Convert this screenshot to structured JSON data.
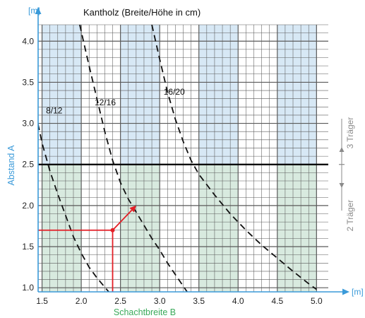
{
  "colors": {
    "axis": "#3a9ad9",
    "grid": "#5a5a5a",
    "band_top": "#d7e8f5",
    "band_bottom": "#d8eadf",
    "example": "#e31f26",
    "curve": "#111111",
    "side_label": "#8a8a8a"
  },
  "chart_data": {
    "type": "line",
    "title": "Kantholz (Breite/Höhe in cm)",
    "xlabel": "Schachtbreite B",
    "ylabel": "Abstand A",
    "x_unit": "[m]",
    "y_unit": "[m]",
    "xlim": [
      1.45,
      5.15
    ],
    "ylim": [
      0.95,
      4.2
    ],
    "x_ticks": [
      "1.5",
      "2.0",
      "2.5",
      "3.0",
      "3.5",
      "4.0",
      "4.5",
      "5.0"
    ],
    "y_ticks": [
      "1.0",
      "1.5",
      "2.0",
      "2.5",
      "3.0",
      "3.5",
      "4.0"
    ],
    "grid": true,
    "shaded_bands_x": [
      [
        1.5,
        2.0
      ],
      [
        2.5,
        3.0
      ],
      [
        3.5,
        4.0
      ],
      [
        4.5,
        5.0
      ]
    ],
    "threshold": {
      "y": 2.5,
      "label_above": "3 Träger",
      "label_below": "2 Träger"
    },
    "series": [
      {
        "name": "8/12",
        "x": [
          1.42,
          1.5,
          1.6,
          1.7,
          1.8,
          1.9,
          2.0,
          2.1,
          2.2,
          2.35
        ],
        "y": [
          3.12,
          2.76,
          2.42,
          2.14,
          1.88,
          1.62,
          1.42,
          1.25,
          1.12,
          0.95
        ]
      },
      {
        "name": "12/16",
        "x": [
          1.98,
          2.1,
          2.2,
          2.3,
          2.4,
          2.5,
          2.6,
          2.7,
          2.8,
          2.9,
          3.0,
          3.1,
          3.2,
          3.3,
          3.35
        ],
        "y": [
          4.2,
          3.7,
          3.3,
          2.9,
          2.55,
          2.28,
          2.08,
          1.92,
          1.76,
          1.6,
          1.46,
          1.3,
          1.16,
          1.02,
          0.95
        ]
      },
      {
        "name": "16/20",
        "x": [
          2.9,
          3.0,
          3.1,
          3.2,
          3.3,
          3.4,
          3.5,
          3.7,
          3.9,
          4.1,
          4.3,
          4.5,
          4.7,
          4.9,
          5.0
        ],
        "y": [
          4.2,
          3.78,
          3.38,
          3.05,
          2.78,
          2.55,
          2.38,
          2.13,
          1.9,
          1.7,
          1.52,
          1.36,
          1.2,
          1.05,
          0.98
        ]
      }
    ],
    "annotation_example": {
      "a": 1.7,
      "b": 2.4,
      "arrow_to": [
        2.7,
        2.0
      ]
    }
  }
}
